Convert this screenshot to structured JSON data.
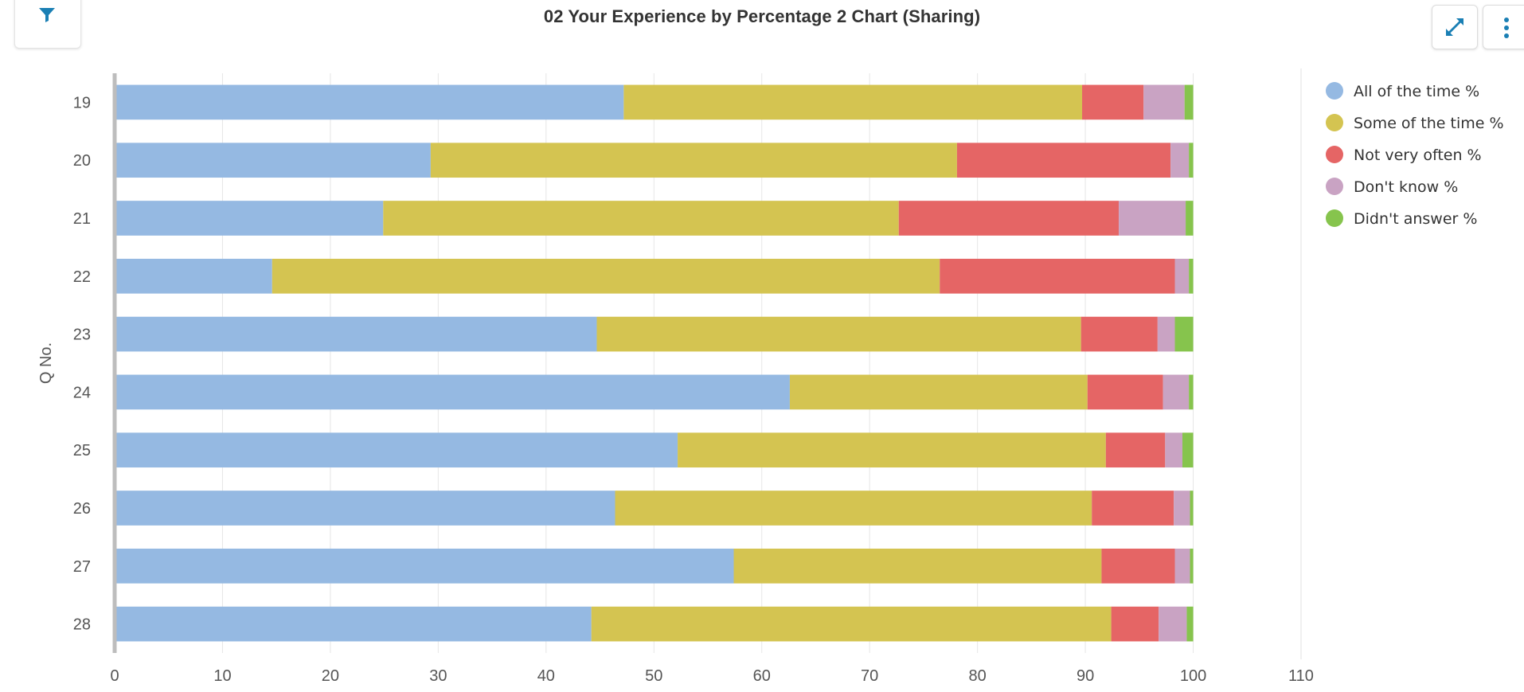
{
  "header": {
    "filter_icon": "filter-icon",
    "expand_icon": "expand-arrows-icon",
    "menu_icon": "vertical-dots-icon"
  },
  "chart_data": {
    "type": "bar",
    "orientation": "horizontal",
    "stacked": true,
    "title": "02 Your Experience by Percentage 2 Chart (Sharing)",
    "ylabel": "Q No.",
    "xlabel": "",
    "categories": [
      "19",
      "20",
      "21",
      "22",
      "23",
      "24",
      "25",
      "26",
      "27",
      "28"
    ],
    "xlim": [
      0,
      110
    ],
    "xticks": [
      "0",
      "10",
      "20",
      "30",
      "40",
      "50",
      "60",
      "70",
      "80",
      "90",
      "100",
      "110"
    ],
    "grid": true,
    "legend_position": "top-right",
    "series": [
      {
        "name": "All of the time %",
        "color": "#95b9e2",
        "values": [
          47.2,
          29.3,
          24.9,
          14.6,
          44.7,
          62.6,
          52.2,
          46.4,
          57.4,
          44.2
        ]
      },
      {
        "name": "Some of the time %",
        "color": "#d4c451",
        "values": [
          42.5,
          48.8,
          47.8,
          61.9,
          44.9,
          27.6,
          39.7,
          44.2,
          34.1,
          48.2
        ]
      },
      {
        "name": "Not very often %",
        "color": "#e56565",
        "values": [
          5.7,
          19.8,
          20.4,
          21.8,
          7.1,
          7.0,
          5.5,
          7.6,
          6.8,
          4.4
        ]
      },
      {
        "name": "Don't know %",
        "color": "#c9a3c3",
        "values": [
          3.8,
          1.7,
          6.2,
          1.3,
          1.6,
          2.4,
          1.6,
          1.5,
          1.4,
          2.6
        ]
      },
      {
        "name": "Didn't answer %",
        "color": "#86c44d",
        "values": [
          0.8,
          0.4,
          0.7,
          0.4,
          1.7,
          0.4,
          1.0,
          0.3,
          0.3,
          0.6
        ]
      }
    ]
  }
}
